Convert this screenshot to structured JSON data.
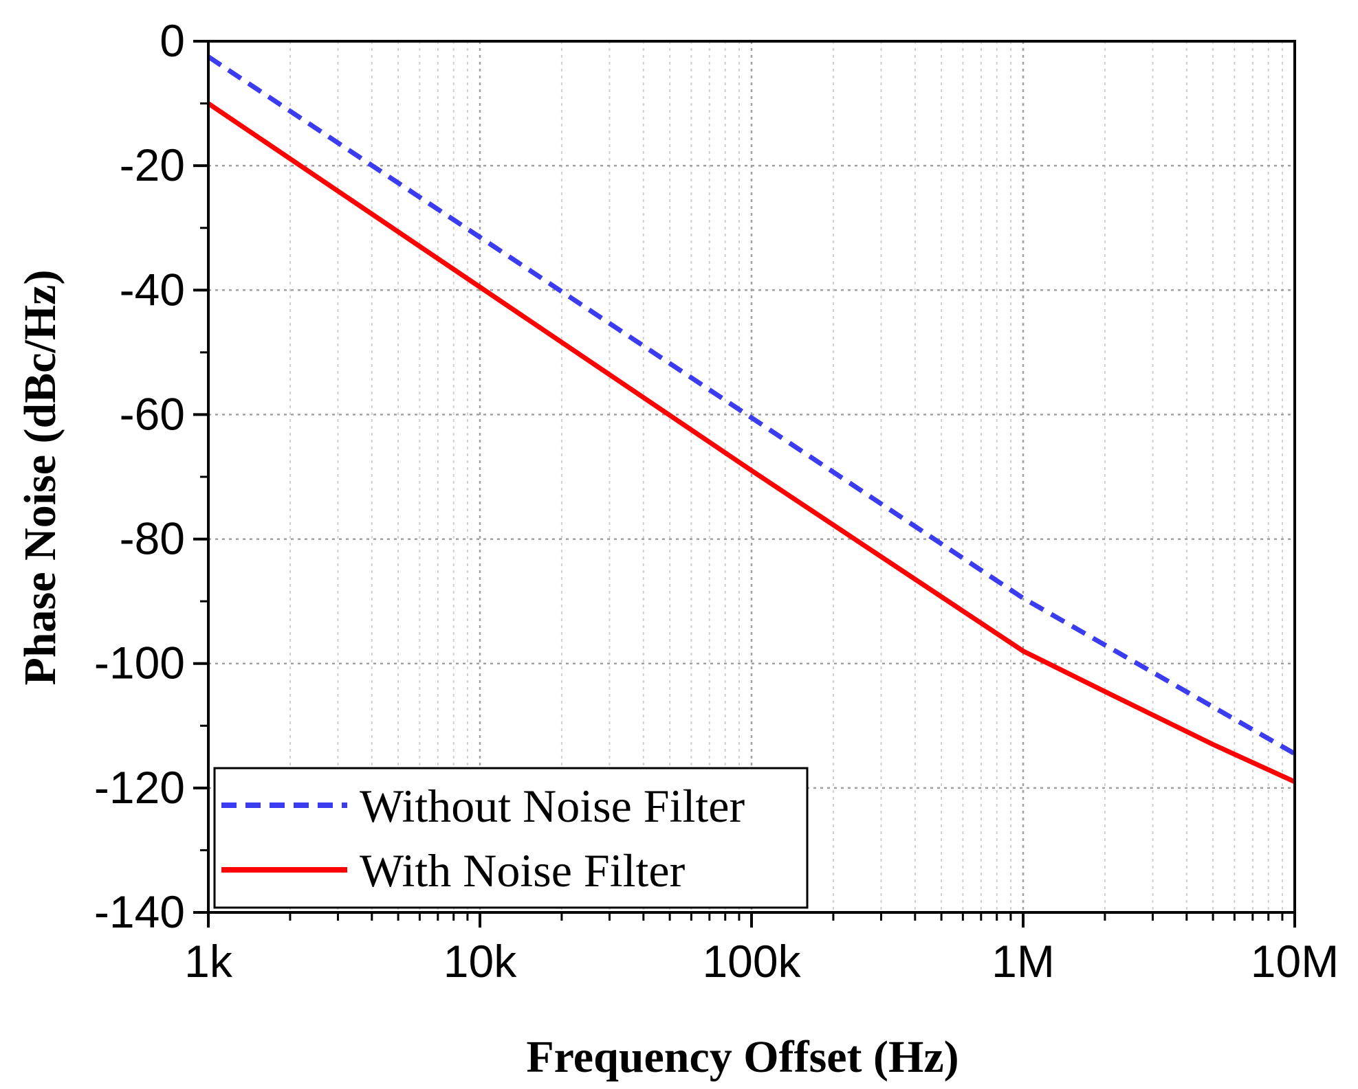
{
  "chart_data": {
    "type": "line",
    "title": "",
    "xlabel": "Frequency Offset (Hz)",
    "ylabel": "Phase Noise (dBc/Hz)",
    "xscale": "log",
    "xlim": [
      1000,
      10000000
    ],
    "ylim": [
      -140,
      0
    ],
    "grid": true,
    "x_ticks": [
      {
        "value": 1000,
        "label": "1k"
      },
      {
        "value": 10000,
        "label": "10k"
      },
      {
        "value": 100000,
        "label": "100k"
      },
      {
        "value": 1000000,
        "label": "1M"
      },
      {
        "value": 10000000,
        "label": "10M"
      }
    ],
    "y_ticks": [
      {
        "value": 0,
        "label": "0"
      },
      {
        "value": -20,
        "label": "-20"
      },
      {
        "value": -40,
        "label": "-40"
      },
      {
        "value": -60,
        "label": "-60"
      },
      {
        "value": -80,
        "label": "-80"
      },
      {
        "value": -100,
        "label": "-100"
      },
      {
        "value": -120,
        "label": "-120"
      },
      {
        "value": -140,
        "label": "-140"
      }
    ],
    "legend_position": "bottom-left",
    "series": [
      {
        "name": "Without Noise Filter",
        "color": "#3b3bf0",
        "style": "dashed",
        "x": [
          1000,
          10000,
          100000,
          1000000,
          10000000
        ],
        "y": [
          -2.5,
          -31.5,
          -60.5,
          -89.5,
          -114.5
        ]
      },
      {
        "name": "With Noise Filter",
        "color": "#ff0000",
        "style": "solid",
        "x": [
          1000,
          10000,
          100000,
          1000000,
          2000000,
          5000000,
          10000000
        ],
        "y": [
          -10,
          -39.5,
          -69,
          -98,
          -104.5,
          -113,
          -119
        ]
      }
    ]
  }
}
